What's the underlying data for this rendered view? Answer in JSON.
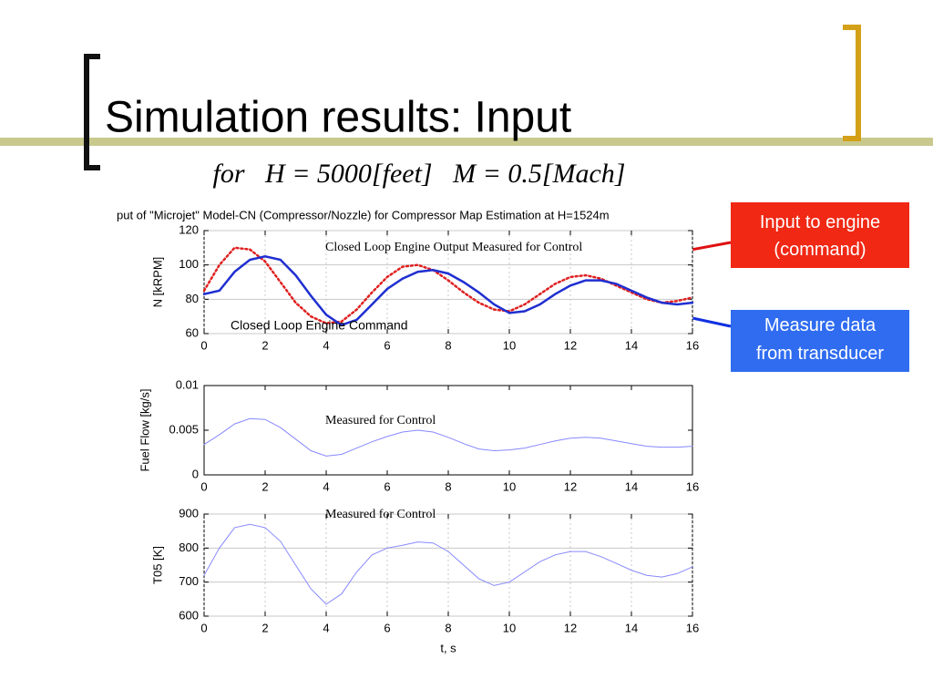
{
  "header": {
    "title": "Simulation results: Input",
    "formula": "for   H = 5000[feet]   M = 0.5[Mach]"
  },
  "callouts": [
    "Input  to engine (command)",
    "Measure data from transducer"
  ],
  "chart_data": [
    {
      "type": "line",
      "title": "put of \"Microjet\" Model-CN (Compressor/Nozzle) for Compressor Map Estimation at H=1524m",
      "ylabel": "N [kRPM]",
      "annotations": [
        "Closed Loop Engine Output Measured for Control",
        "Closed Loop Engine Command"
      ],
      "x": [
        0,
        0.5,
        1,
        1.5,
        2,
        2.5,
        3,
        3.5,
        4,
        4.5,
        5,
        5.5,
        6,
        6.5,
        7,
        7.5,
        8,
        8.5,
        9,
        9.5,
        10,
        10.5,
        11,
        11.5,
        12,
        12.5,
        13,
        13.5,
        14,
        14.5,
        15,
        15.5,
        16
      ],
      "series": [
        {
          "color": "#e02020",
          "dash": "dotted",
          "values": [
            85,
            100,
            110,
            109,
            102,
            90,
            78,
            70,
            66,
            67,
            74,
            84,
            93,
            99,
            100,
            97,
            91,
            84,
            78,
            74,
            73,
            77,
            83,
            89,
            93,
            94,
            92,
            88,
            84,
            80,
            78,
            79,
            81
          ]
        },
        {
          "color": "#1f2fd0",
          "dash": "solid",
          "values": [
            83,
            85,
            96,
            103,
            105,
            103,
            94,
            82,
            71,
            65,
            68,
            77,
            86,
            92,
            96,
            97,
            95,
            90,
            84,
            77,
            72,
            73,
            77,
            83,
            88,
            91,
            91,
            89,
            85,
            81,
            78,
            77,
            78
          ]
        }
      ],
      "xlim": [
        0,
        16
      ],
      "xticks": [
        0,
        2,
        4,
        6,
        8,
        10,
        12,
        14,
        16
      ],
      "ylim": [
        60,
        120
      ],
      "yticks": [
        60,
        80,
        100,
        120
      ],
      "grid": true
    },
    {
      "type": "line",
      "ylabel": "Fuel Flow [kg/s]",
      "annotations": [
        "Measured for Control"
      ],
      "x": [
        0,
        0.5,
        1,
        1.5,
        2,
        2.5,
        3,
        3.5,
        4,
        4.5,
        5,
        5.5,
        6,
        6.5,
        7,
        7.5,
        8,
        8.5,
        9,
        9.5,
        10,
        10.5,
        11,
        11.5,
        12,
        12.5,
        13,
        13.5,
        14,
        14.5,
        15,
        15.5,
        16
      ],
      "series": [
        {
          "color": "#8888ff",
          "dash": "solid",
          "values": [
            0.0034,
            0.0045,
            0.0057,
            0.0063,
            0.0062,
            0.0053,
            0.004,
            0.0027,
            0.0021,
            0.0023,
            0.003,
            0.0037,
            0.0043,
            0.0048,
            0.005,
            0.0048,
            0.0042,
            0.0035,
            0.0029,
            0.0027,
            0.0028,
            0.003,
            0.0034,
            0.0038,
            0.0041,
            0.0042,
            0.0041,
            0.0038,
            0.0035,
            0.0032,
            0.0031,
            0.0031,
            0.0032
          ]
        }
      ],
      "xlim": [
        0,
        16
      ],
      "xticks": [
        0,
        2,
        4,
        6,
        8,
        10,
        12,
        14,
        16
      ],
      "ylim": [
        0,
        0.01
      ],
      "yticks": [
        0,
        0.005,
        0.01
      ],
      "grid": false
    },
    {
      "type": "line",
      "ylabel": "T05 [K]",
      "xlabel": "t, s",
      "annotations": [
        "Measured for Control"
      ],
      "x": [
        0,
        0.5,
        1,
        1.5,
        2,
        2.5,
        3,
        3.5,
        4,
        4.5,
        5,
        5.5,
        6,
        6.5,
        7,
        7.5,
        8,
        8.5,
        9,
        9.5,
        10,
        10.5,
        11,
        11.5,
        12,
        12.5,
        13,
        13.5,
        14,
        14.5,
        15,
        15.5,
        16
      ],
      "series": [
        {
          "color": "#8888ff",
          "dash": "solid",
          "values": [
            720,
            800,
            860,
            870,
            860,
            820,
            750,
            680,
            635,
            665,
            730,
            780,
            800,
            808,
            818,
            815,
            790,
            750,
            710,
            690,
            700,
            730,
            760,
            780,
            790,
            790,
            775,
            755,
            735,
            720,
            715,
            725,
            745
          ]
        }
      ],
      "xlim": [
        0,
        16
      ],
      "xticks": [
        0,
        2,
        4,
        6,
        8,
        10,
        12,
        14,
        16
      ],
      "ylim": [
        600,
        900
      ],
      "yticks": [
        600,
        700,
        800,
        900
      ],
      "grid": true
    }
  ]
}
